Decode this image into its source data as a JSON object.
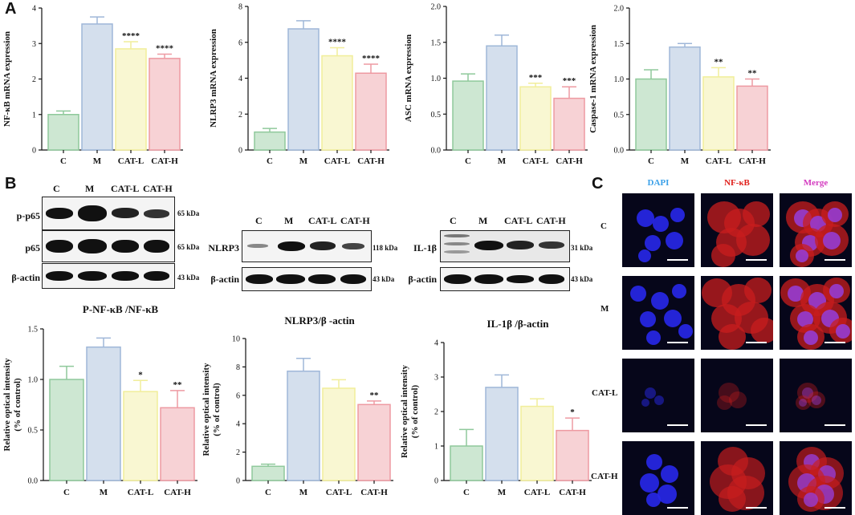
{
  "panels": {
    "a": "A",
    "b": "B",
    "c": "C"
  },
  "colors": {
    "C": "#8fc99b",
    "M": "#9fb7d8",
    "CAT-L": "#f1ee9a",
    "CAT-H": "#ee9aa2"
  },
  "chart_data": [
    {
      "type": "bar",
      "title": "",
      "ylabel": "NF-κB mRNA expression",
      "categories": [
        "C",
        "M",
        "CAT-L",
        "CAT-H"
      ],
      "values": [
        1.0,
        3.55,
        2.85,
        2.58
      ],
      "errors": [
        0.1,
        0.2,
        0.2,
        0.12
      ],
      "sig": [
        "",
        "",
        "****",
        "****"
      ],
      "ylim": [
        0,
        4
      ],
      "yticks": [
        0,
        1,
        2,
        3,
        4
      ]
    },
    {
      "type": "bar",
      "title": "",
      "ylabel": "NLRP3 mRNA expression",
      "categories": [
        "C",
        "M",
        "CAT-L",
        "CAT-H"
      ],
      "values": [
        1.0,
        6.75,
        5.25,
        4.28
      ],
      "errors": [
        0.2,
        0.45,
        0.45,
        0.5
      ],
      "sig": [
        "",
        "",
        "****",
        "****"
      ],
      "ylim": [
        0,
        8
      ],
      "yticks": [
        0,
        2,
        4,
        6,
        8
      ]
    },
    {
      "type": "bar",
      "title": "",
      "ylabel": "ASC  mRNA expression",
      "categories": [
        "C",
        "M",
        "CAT-L",
        "CAT-H"
      ],
      "values": [
        0.96,
        1.45,
        0.88,
        0.72
      ],
      "errors": [
        0.1,
        0.15,
        0.05,
        0.16
      ],
      "sig": [
        "",
        "",
        "***",
        "***"
      ],
      "ylim": [
        0,
        2.0
      ],
      "yticks": [
        "0.0",
        "0.5",
        "1.0",
        "1.5",
        "2.0"
      ]
    },
    {
      "type": "bar",
      "title": "",
      "ylabel": "Caspase-1 mRNA expression",
      "categories": [
        "C",
        "M",
        "CAT-L",
        "CAT-H"
      ],
      "values": [
        1.0,
        1.45,
        1.03,
        0.9
      ],
      "errors": [
        0.13,
        0.05,
        0.13,
        0.1
      ],
      "sig": [
        "",
        "",
        "**",
        "**"
      ],
      "ylim": [
        0,
        2.0
      ],
      "yticks": [
        "0.0",
        "0.5",
        "1.0",
        "1.5",
        "2.0"
      ]
    },
    {
      "type": "bar",
      "title": "P-NF-κB /NF-κB",
      "ylabel": "Relative optical intensity",
      "ylabel2": "(% of control)",
      "categories": [
        "C",
        "M",
        "CAT-L",
        "CAT-H"
      ],
      "values": [
        1.0,
        1.32,
        0.88,
        0.72
      ],
      "errors": [
        0.13,
        0.09,
        0.11,
        0.17
      ],
      "sig": [
        "",
        "",
        "*",
        "**"
      ],
      "ylim": [
        0,
        1.5
      ],
      "yticks": [
        "0.0",
        "0.5",
        "1.0",
        "1.5"
      ]
    },
    {
      "type": "bar",
      "title": "NLRP3/β -actin",
      "ylabel": "Relative optical intensity",
      "ylabel2": "(% of control)",
      "categories": [
        "C",
        "M",
        "CAT-L",
        "CAT-H"
      ],
      "values": [
        1.0,
        7.7,
        6.5,
        5.35
      ],
      "errors": [
        0.15,
        0.9,
        0.6,
        0.25
      ],
      "sig": [
        "",
        "",
        "",
        "**"
      ],
      "ylim": [
        0,
        10
      ],
      "yticks": [
        0,
        2,
        4,
        6,
        8,
        10
      ]
    },
    {
      "type": "bar",
      "title": "IL-1β /β-actin",
      "ylabel": "Relative optical intensity",
      "ylabel2": "(% of control)",
      "categories": [
        "C",
        "M",
        "CAT-L",
        "CAT-H"
      ],
      "values": [
        1.0,
        2.7,
        2.15,
        1.45
      ],
      "errors": [
        0.48,
        0.36,
        0.22,
        0.36
      ],
      "sig": [
        "",
        "",
        "",
        "*"
      ],
      "ylim": [
        0,
        4
      ],
      "yticks": [
        0,
        1,
        2,
        3,
        4
      ]
    }
  ],
  "western": {
    "blot1": {
      "lanes": [
        "C",
        "M",
        "CAT-L",
        "CAT-H"
      ],
      "rows": [
        "p-p65",
        "p65",
        "β-actin"
      ],
      "sizes": [
        "65 kDa",
        "65 kDa",
        "43 kDa"
      ]
    },
    "blot2": {
      "lanes": [
        "C",
        "M",
        "CAT-L",
        "CAT-H"
      ],
      "rows": [
        "NLRP3",
        "β-actin"
      ],
      "sizes": [
        "118 kDa",
        "43 kDa"
      ]
    },
    "blot3": {
      "lanes": [
        "C",
        "M",
        "CAT-L",
        "CAT-H"
      ],
      "rows": [
        "IL-1β",
        "β-actin"
      ],
      "sizes": [
        "31 kDa",
        "43 kDa"
      ]
    }
  },
  "immuno": {
    "columns": [
      "DAPI",
      "NF-κB",
      "Merge"
    ],
    "column_colors": [
      "#3aa0e8",
      "#e0201c",
      "#d43cc0"
    ],
    "rows": [
      "C",
      "M",
      "CAT-L",
      "CAT-H"
    ]
  }
}
